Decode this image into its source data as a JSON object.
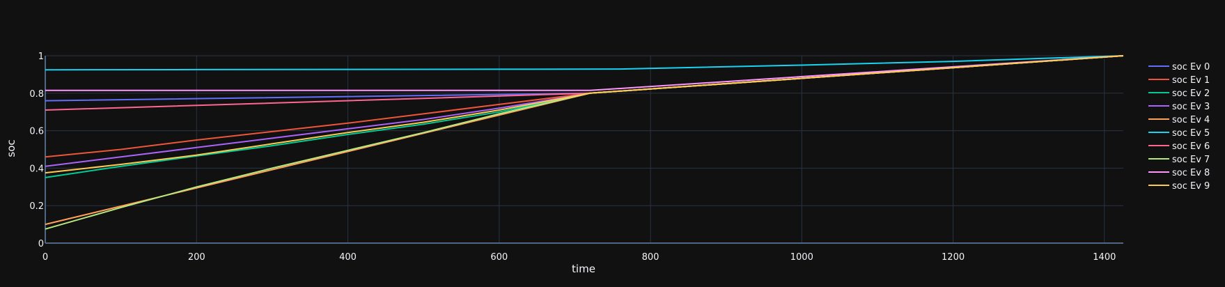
{
  "chart_data": {
    "type": "line",
    "xlabel": "time",
    "ylabel": "soc",
    "xlim": [
      0,
      1425
    ],
    "ylim": [
      0,
      1
    ],
    "xticks": [
      0,
      200,
      400,
      600,
      800,
      1000,
      1200,
      1400
    ],
    "yticks": [
      0,
      0.2,
      0.4,
      0.6,
      0.8,
      1
    ],
    "ytick_labels": [
      "0",
      "0.2",
      "0.4",
      "0.6",
      "0.8",
      "1"
    ],
    "grid": true,
    "legend_position": "right",
    "series": [
      {
        "name": "soc Ev 0",
        "color": "#636efa",
        "x": [
          0,
          720,
          1425
        ],
        "y": [
          0.76,
          0.8,
          1.0
        ]
      },
      {
        "name": "soc Ev 1",
        "color": "#ef553b",
        "x": [
          0,
          100,
          200,
          300,
          400,
          500,
          600,
          720,
          1425
        ],
        "y": [
          0.46,
          0.5,
          0.55,
          0.595,
          0.64,
          0.69,
          0.74,
          0.8,
          1.0
        ]
      },
      {
        "name": "soc Ev 2",
        "color": "#00cc96",
        "x": [
          0,
          100,
          200,
          300,
          400,
          500,
          600,
          720,
          1425
        ],
        "y": [
          0.35,
          0.41,
          0.465,
          0.52,
          0.58,
          0.635,
          0.7,
          0.8,
          1.0
        ]
      },
      {
        "name": "soc Ev 3",
        "color": "#ab63fa",
        "x": [
          0,
          100,
          200,
          300,
          400,
          500,
          600,
          720,
          1425
        ],
        "y": [
          0.41,
          0.46,
          0.51,
          0.56,
          0.61,
          0.66,
          0.72,
          0.8,
          1.0
        ]
      },
      {
        "name": "soc Ev 4",
        "color": "#ffa15a",
        "x": [
          0,
          720,
          1425
        ],
        "y": [
          0.1,
          0.8,
          1.0
        ]
      },
      {
        "name": "soc Ev 5",
        "color": "#19d3f3",
        "x": [
          0,
          200,
          400,
          600,
          760,
          1000,
          1200,
          1425
        ],
        "y": [
          0.925,
          0.926,
          0.927,
          0.928,
          0.929,
          0.95,
          0.97,
          1.0
        ]
      },
      {
        "name": "soc Ev 6",
        "color": "#ff6692",
        "x": [
          0,
          720,
          1425
        ],
        "y": [
          0.71,
          0.8,
          1.0
        ]
      },
      {
        "name": "soc Ev 7",
        "color": "#b6e880",
        "x": [
          0,
          100,
          200,
          300,
          400,
          500,
          600,
          720,
          1425
        ],
        "y": [
          0.075,
          0.19,
          0.3,
          0.4,
          0.495,
          0.59,
          0.69,
          0.8,
          1.0
        ]
      },
      {
        "name": "soc Ev 8",
        "color": "#ff97ff",
        "x": [
          0,
          720,
          1425
        ],
        "y": [
          0.815,
          0.815,
          1.0
        ]
      },
      {
        "name": "soc Ev 9",
        "color": "#fecb52",
        "x": [
          0,
          100,
          200,
          300,
          400,
          500,
          600,
          720,
          1425
        ],
        "y": [
          0.375,
          0.42,
          0.47,
          0.53,
          0.59,
          0.645,
          0.71,
          0.8,
          1.0
        ]
      }
    ]
  }
}
